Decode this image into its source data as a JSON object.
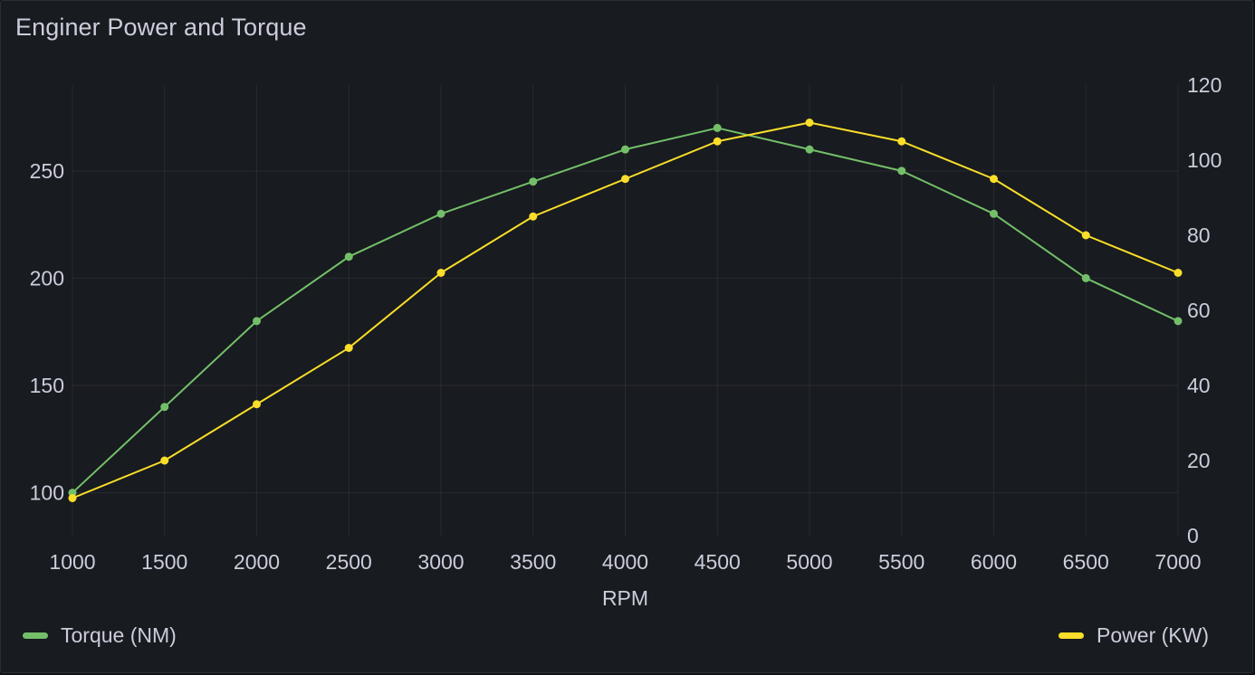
{
  "panel": {
    "title": "Enginer Power and Torque"
  },
  "chart_data": {
    "type": "line",
    "title": "Enginer Power and Torque",
    "xlabel": "RPM",
    "x": [
      1000,
      1500,
      2000,
      2500,
      3000,
      3500,
      4000,
      4500,
      5000,
      5500,
      6000,
      6500,
      7000
    ],
    "x_ticks": [
      "1000",
      "1500",
      "2000",
      "2500",
      "3000",
      "3500",
      "4000",
      "4500",
      "5000",
      "5500",
      "6000",
      "6500",
      "7000"
    ],
    "xlim": [
      1000,
      7000
    ],
    "y_left": {
      "ticks": [
        "100",
        "150",
        "200",
        "250"
      ],
      "tick_values": [
        100,
        150,
        200,
        250
      ],
      "ylim": [
        80,
        290
      ]
    },
    "y_right": {
      "ticks": [
        "0",
        "20",
        "40",
        "60",
        "80",
        "100",
        "120"
      ],
      "tick_values": [
        0,
        20,
        40,
        60,
        80,
        100,
        120
      ],
      "ylim": [
        0,
        120
      ]
    },
    "grid": true,
    "legend_placement": "bottom",
    "series": [
      {
        "name": "Torque (NM)",
        "axis": "left",
        "color": "#73bf69",
        "values": [
          100,
          140,
          180,
          210,
          230,
          245,
          260,
          270,
          260,
          250,
          230,
          200,
          180
        ]
      },
      {
        "name": "Power (KW)",
        "axis": "right",
        "color": "#fade2a",
        "values": [
          10,
          20,
          35,
          50,
          70,
          85,
          95,
          105,
          110,
          105,
          95,
          80,
          70
        ]
      }
    ]
  }
}
